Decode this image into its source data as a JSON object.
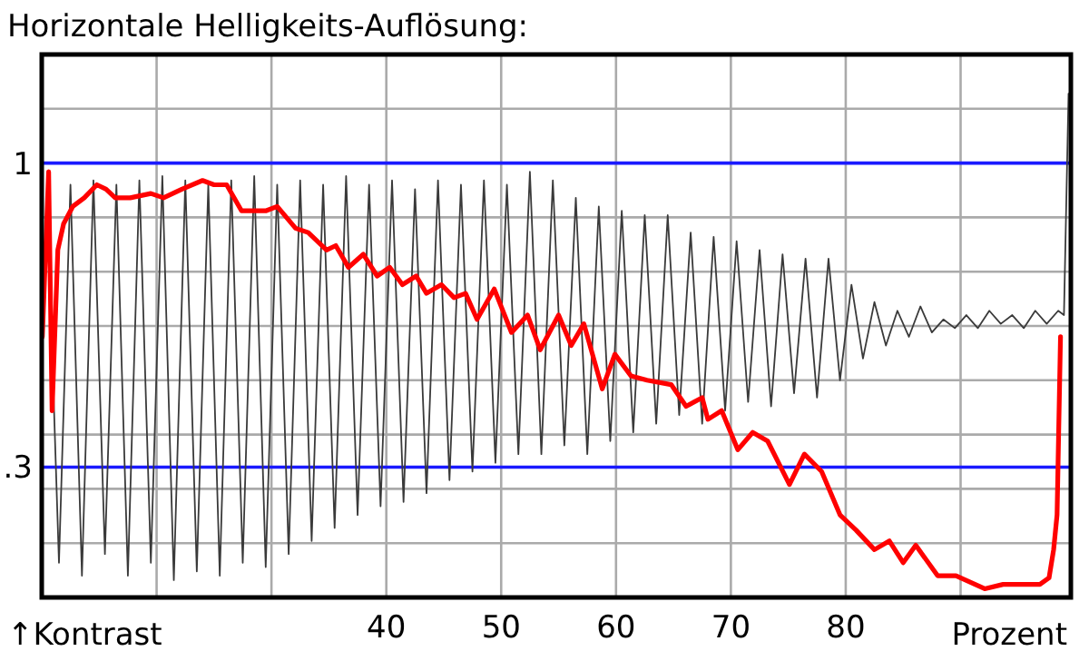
{
  "chart_data": {
    "type": "line",
    "title": "Horizontale Helligkeits-Auflösung:",
    "xlabel": "Prozent",
    "ylabel": "↑Kontrast",
    "xlim": [
      10,
      99.6
    ],
    "ylim": [
      0,
      1.25
    ],
    "xticks": [
      {
        "value": 20,
        "label": null
      },
      {
        "value": 30,
        "label": null
      },
      40,
      50,
      60,
      70,
      80,
      {
        "value": 90,
        "label": null
      }
    ],
    "yticks": [
      {
        "value": 0.125,
        "label": null
      },
      {
        "value": 0.25,
        "label": null
      },
      {
        "value": 0.375,
        "label": null
      },
      {
        "value": 0.5,
        "label": null
      },
      {
        "value": 0.625,
        "label": null
      },
      {
        "value": 0.75,
        "label": null
      },
      {
        "value": 0.875,
        "label": null
      },
      {
        "value": 1,
        "label": null
      },
      {
        "value": 1.125,
        "label": null
      }
    ],
    "tick_labels": "x",
    "grid": true,
    "ref_lines": [
      {
        "axis": "y",
        "value": 1,
        "label": "1",
        "color": "#1a1aff"
      },
      {
        "axis": "y",
        "value": 0.3,
        "label": ".3",
        "color": "#1a1aff"
      }
    ],
    "series": [
      {
        "color": "#3a3a3a",
        "x": [
          10.5,
          11.5,
          12.5,
          13.5,
          14.5,
          15.5,
          16.5,
          17.5,
          18.5,
          19.5,
          20.5,
          21.5,
          22.5,
          23.5,
          24.5,
          25.5,
          26.5,
          27.5,
          28.5,
          29.5,
          30.5,
          31.5,
          32.5,
          33.5,
          34.5,
          35.5,
          36.5,
          37.5,
          38.5,
          39.5,
          40.5,
          41.5,
          42.5,
          43.5,
          44.5,
          45.5,
          46.5,
          47.5,
          48.5,
          49.5,
          50.5,
          51.5,
          52.5,
          53.5,
          54.5,
          55.5,
          56.5,
          57.5,
          58.5,
          59.5,
          60.5,
          61.5,
          62.5,
          63.5,
          64.5,
          65.5,
          66.5,
          67.5,
          68.5,
          69.5,
          70.5,
          71.5,
          72.5,
          73.5,
          74.5,
          75.5,
          76.5,
          77.5,
          78.5,
          79.5,
          80.5,
          81.5,
          82.5,
          83.5,
          84.5,
          85.5,
          86.5,
          87.5,
          88.5,
          89.5,
          90.5,
          91.5,
          92.5,
          93.5,
          94.5,
          95.5,
          96.5,
          97.5,
          98.5,
          99.0,
          99.4
        ],
        "values": [
          0.9,
          0.08,
          0.95,
          0.05,
          0.96,
          0.1,
          0.95,
          0.05,
          0.96,
          0.08,
          0.97,
          0.04,
          0.96,
          0.06,
          0.95,
          0.05,
          0.96,
          0.08,
          0.97,
          0.07,
          0.95,
          0.1,
          0.96,
          0.13,
          0.95,
          0.16,
          0.97,
          0.19,
          0.95,
          0.21,
          0.96,
          0.22,
          0.94,
          0.24,
          0.96,
          0.27,
          0.95,
          0.29,
          0.96,
          0.31,
          0.95,
          0.33,
          0.98,
          0.33,
          0.96,
          0.35,
          0.92,
          0.33,
          0.9,
          0.36,
          0.89,
          0.38,
          0.88,
          0.4,
          0.88,
          0.42,
          0.84,
          0.4,
          0.83,
          0.43,
          0.82,
          0.45,
          0.8,
          0.44,
          0.79,
          0.47,
          0.78,
          0.46,
          0.78,
          0.5,
          0.72,
          0.55,
          0.68,
          0.58,
          0.66,
          0.6,
          0.67,
          0.61,
          0.64,
          0.62,
          0.65,
          0.62,
          0.66,
          0.63,
          0.65,
          0.62,
          0.66,
          0.63,
          0.66,
          0.65,
          1.16
        ]
      },
      {
        "color": "#ff0000",
        "x": [
          10.05,
          10.6,
          10.9,
          11.4,
          11.9,
          12.7,
          13.7,
          14.8,
          15.6,
          16.4,
          17.7,
          19.5,
          20.6,
          22.2,
          24.0,
          25.0,
          26.1,
          27.4,
          29.5,
          30.5,
          32.1,
          33.2,
          34.8,
          35.6,
          36.7,
          38.0,
          39.2,
          40.3,
          41.4,
          42.6,
          43.5,
          44.8,
          45.9,
          46.9,
          47.9,
          49.4,
          50.9,
          52.3,
          53.4,
          55.0,
          56.1,
          57.2,
          58.8,
          59.9,
          61.3,
          62.7,
          64.8,
          66.1,
          67.5,
          68.0,
          69.2,
          70.6,
          71.9,
          73.2,
          75.1,
          76.4,
          77.9,
          79.5,
          80.9,
          82.5,
          83.8,
          85.0,
          86.1,
          88.0,
          89.6,
          92.1,
          93.7,
          96.9,
          97.7,
          98.1,
          98.4,
          98.7
        ],
        "values": [
          0.6,
          0.98,
          0.43,
          0.8,
          0.86,
          0.9,
          0.92,
          0.95,
          0.94,
          0.92,
          0.92,
          0.93,
          0.92,
          0.94,
          0.96,
          0.95,
          0.95,
          0.89,
          0.89,
          0.9,
          0.85,
          0.84,
          0.8,
          0.81,
          0.76,
          0.79,
          0.74,
          0.76,
          0.72,
          0.74,
          0.7,
          0.72,
          0.69,
          0.7,
          0.64,
          0.71,
          0.61,
          0.65,
          0.57,
          0.65,
          0.58,
          0.63,
          0.48,
          0.56,
          0.51,
          0.5,
          0.49,
          0.44,
          0.46,
          0.41,
          0.43,
          0.34,
          0.38,
          0.36,
          0.26,
          0.33,
          0.29,
          0.19,
          0.155,
          0.11,
          0.13,
          0.08,
          0.12,
          0.05,
          0.05,
          0.02,
          0.03,
          0.03,
          0.045,
          0.11,
          0.19,
          0.6
        ]
      }
    ]
  }
}
